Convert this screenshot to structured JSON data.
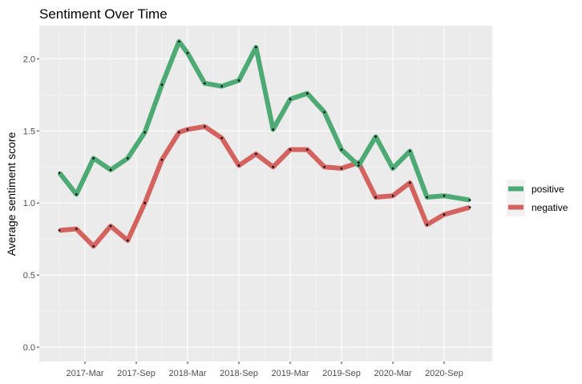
{
  "chart_data": {
    "type": "line",
    "title": "Sentiment Over Time",
    "xlabel": "",
    "ylabel": "Average sentiment score",
    "x": [
      "2016-12",
      "2017-01",
      "2017-02",
      "2017-03",
      "2017-04",
      "2017-05",
      "2017-06",
      "2017-07",
      "2017-08",
      "2017-09",
      "2017-10",
      "2017-11",
      "2017-12",
      "2018-01",
      "2018-02",
      "2018-03",
      "2018-04",
      "2018-05",
      "2018-06",
      "2018-07",
      "2018-08",
      "2018-09",
      "2018-10",
      "2018-11",
      "2018-12",
      "2019-01",
      "2019-02",
      "2019-03",
      "2019-04",
      "2019-05",
      "2019-06",
      "2019-07",
      "2019-08",
      "2019-09",
      "2019-10",
      "2019-11",
      "2019-12",
      "2020-01",
      "2020-02",
      "2020-03",
      "2020-04",
      "2020-05",
      "2020-06",
      "2020-07",
      "2020-08",
      "2020-09",
      "2020-10",
      "2020-11",
      "2020-12"
    ],
    "x_tick_labels": [
      "2017-Mar",
      "2017-Sep",
      "2018-Mar",
      "2018-Sep",
      "2019-Mar",
      "2019-Sep",
      "2020-Mar",
      "2020-Sep"
    ],
    "x_tick_values": [
      "2017-03",
      "2017-09",
      "2018-03",
      "2018-09",
      "2019-03",
      "2019-09",
      "2020-03",
      "2020-09"
    ],
    "ylim": [
      -0.1,
      2.23
    ],
    "y_ticks": [
      0.0,
      0.5,
      1.0,
      1.5,
      2.0
    ],
    "y_tick_labels": [
      "0.0",
      "0.5",
      "1.0",
      "1.5",
      "2.0"
    ],
    "grid": true,
    "legend_position": "right",
    "series": [
      {
        "name": "positive",
        "color": "#4daa74",
        "points": [
          [
            "2016-12",
            1.21
          ],
          [
            "2017-02",
            1.06
          ],
          [
            "2017-04",
            1.31
          ],
          [
            "2017-06",
            1.23
          ],
          [
            "2017-08",
            1.31
          ],
          [
            "2017-10",
            1.49
          ],
          [
            "2017-12",
            1.82
          ],
          [
            "2018-02",
            2.12
          ],
          [
            "2018-03",
            2.04
          ],
          [
            "2018-05",
            1.83
          ],
          [
            "2018-07",
            1.81
          ],
          [
            "2018-09",
            1.85
          ],
          [
            "2018-11",
            2.08
          ],
          [
            "2019-01",
            1.51
          ],
          [
            "2019-03",
            1.72
          ],
          [
            "2019-05",
            1.76
          ],
          [
            "2019-07",
            1.63
          ],
          [
            "2019-09",
            1.37
          ],
          [
            "2019-11",
            1.26
          ],
          [
            "2020-01",
            1.46
          ],
          [
            "2020-03",
            1.24
          ],
          [
            "2020-05",
            1.36
          ],
          [
            "2020-07",
            1.04
          ],
          [
            "2020-09",
            1.05
          ],
          [
            "2020-12",
            1.02
          ]
        ]
      },
      {
        "name": "negative",
        "color": "#d4635f",
        "points": [
          [
            "2016-12",
            0.81
          ],
          [
            "2017-02",
            0.82
          ],
          [
            "2017-04",
            0.7
          ],
          [
            "2017-06",
            0.84
          ],
          [
            "2017-08",
            0.74
          ],
          [
            "2017-10",
            1.0
          ],
          [
            "2017-12",
            1.3
          ],
          [
            "2018-02",
            1.49
          ],
          [
            "2018-03",
            1.51
          ],
          [
            "2018-05",
            1.53
          ],
          [
            "2018-07",
            1.45
          ],
          [
            "2018-09",
            1.26
          ],
          [
            "2018-11",
            1.34
          ],
          [
            "2019-01",
            1.25
          ],
          [
            "2019-03",
            1.37
          ],
          [
            "2019-05",
            1.37
          ],
          [
            "2019-07",
            1.25
          ],
          [
            "2019-09",
            1.24
          ],
          [
            "2019-11",
            1.28
          ],
          [
            "2020-01",
            1.04
          ],
          [
            "2020-03",
            1.05
          ],
          [
            "2020-05",
            1.14
          ],
          [
            "2020-07",
            0.85
          ],
          [
            "2020-09",
            0.92
          ],
          [
            "2020-12",
            0.97
          ]
        ]
      }
    ]
  }
}
